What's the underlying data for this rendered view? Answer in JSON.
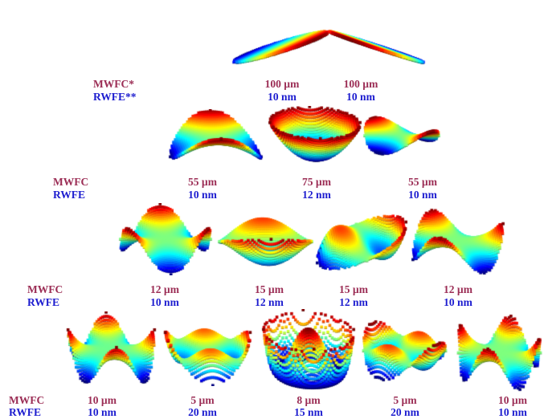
{
  "colors": {
    "mwfc": "#9b2d55",
    "rwfe": "#1c1ccf"
  },
  "rows": [
    {
      "mwfc_label": "MWFC*",
      "rwfe_label": "RWFE**",
      "modes": [
        {
          "mwfc": "100 µm",
          "rwfe": "10 nm",
          "shape": "tilt-left"
        },
        {
          "mwfc": "100 µm",
          "rwfe": "10 nm",
          "shape": "tilt-right"
        }
      ]
    },
    {
      "mwfc_label": "MWFC",
      "rwfe_label": "RWFE",
      "modes": [
        {
          "mwfc": "55 µm",
          "rwfe": "10 nm",
          "shape": "astig-a"
        },
        {
          "mwfc": "75 µm",
          "rwfe": "12 nm",
          "shape": "defocus"
        },
        {
          "mwfc": "55 µm",
          "rwfe": "10 nm",
          "shape": "astig-b"
        }
      ]
    },
    {
      "mwfc_label": "MWFC",
      "rwfe_label": "RWFE",
      "modes": [
        {
          "mwfc": "12 µm",
          "rwfe": "10 nm",
          "shape": "trefoil-a"
        },
        {
          "mwfc": "15 µm",
          "rwfe": "12 nm",
          "shape": "coma-a"
        },
        {
          "mwfc": "15 µm",
          "rwfe": "12 nm",
          "shape": "coma-b"
        },
        {
          "mwfc": "12 µm",
          "rwfe": "10 nm",
          "shape": "trefoil-b"
        }
      ]
    },
    {
      "mwfc_label": "MWFC",
      "rwfe_label": "RWFE",
      "modes": [
        {
          "mwfc": "10 µm",
          "rwfe": "10 nm",
          "shape": "quadrafoil-a"
        },
        {
          "mwfc": "5 µm",
          "rwfe": "20 nm",
          "shape": "sec-astig-a"
        },
        {
          "mwfc": "8 µm",
          "rwfe": "15 nm",
          "shape": "spherical"
        },
        {
          "mwfc": "5 µm",
          "rwfe": "20 nm",
          "shape": "sec-astig-b"
        },
        {
          "mwfc": "10 µm",
          "rwfe": "10 nm",
          "shape": "quadrafoil-b"
        }
      ]
    }
  ]
}
